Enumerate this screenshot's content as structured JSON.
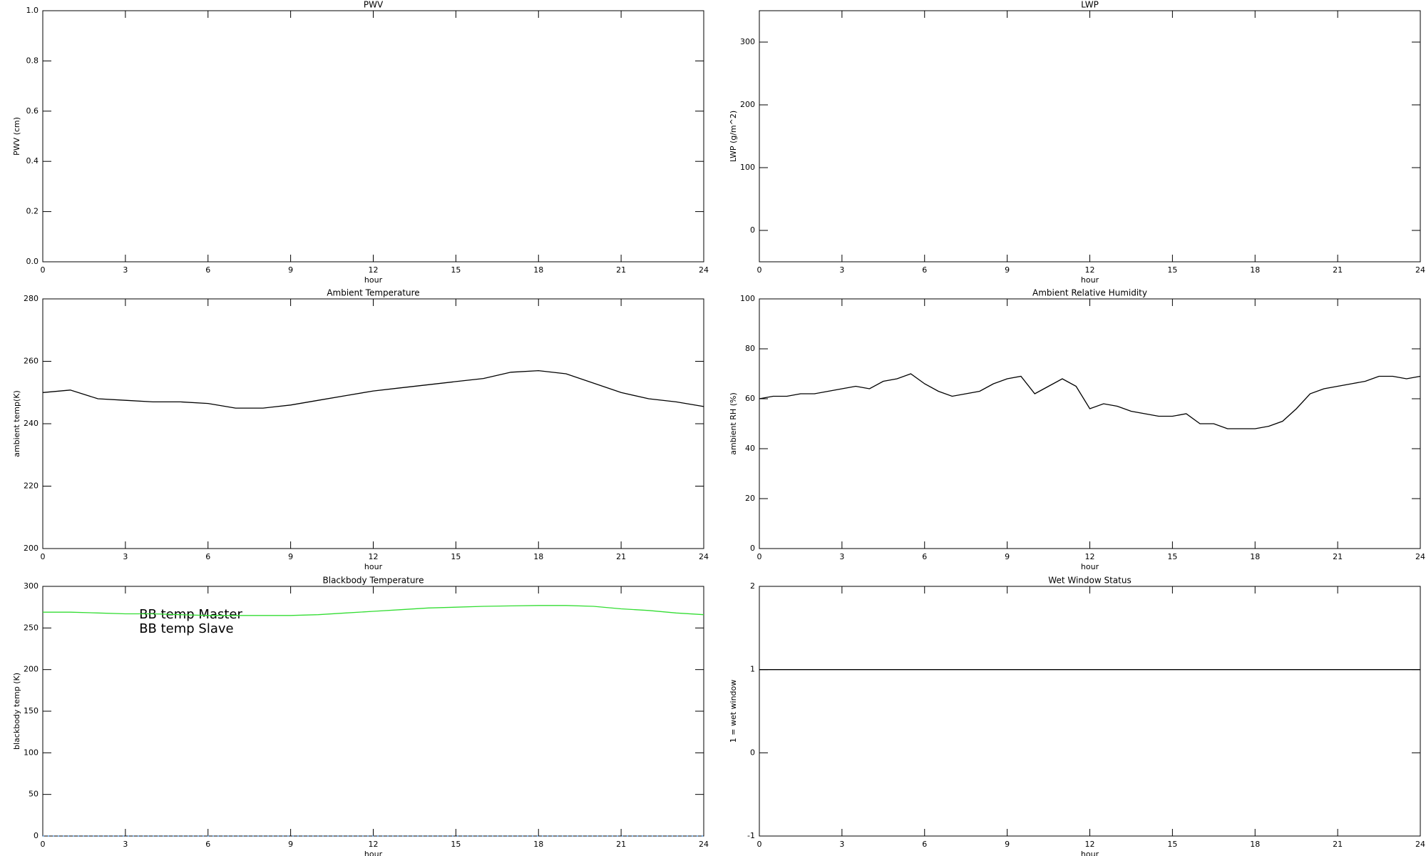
{
  "chart_data": [
    {
      "type": "line",
      "title": "PWV",
      "x_label": "hour",
      "y_label": "PWV (cm)",
      "xlim": [
        0,
        24
      ],
      "xticks": [
        0,
        3,
        6,
        9,
        12,
        15,
        18,
        21,
        24
      ],
      "ylim": [
        0,
        1
      ],
      "yticks": [
        {
          "value": 0,
          "label": "0.0"
        },
        0.2,
        0.4,
        0.6,
        0.8,
        {
          "value": 1,
          "label": "1.0"
        }
      ]
    },
    {
      "type": "line",
      "title": "LWP",
      "x_label": "hour",
      "y_label": "LWP (g/m^2)",
      "xlim": [
        0,
        24
      ],
      "xticks": [
        0,
        3,
        6,
        9,
        12,
        15,
        18,
        21,
        24
      ],
      "ylim": [
        -50,
        350
      ],
      "yticks": [
        0,
        100,
        200,
        300
      ]
    },
    {
      "type": "line",
      "title": "Ambient Temperature",
      "x_label": "hour",
      "y_label": "ambient temp(K)",
      "xlim": [
        0,
        24
      ],
      "xticks": [
        0,
        3,
        6,
        9,
        12,
        15,
        18,
        21,
        24
      ],
      "ylim": [
        200,
        280
      ],
      "yticks": [
        200,
        220,
        240,
        260,
        280
      ],
      "x": [
        0,
        1,
        2,
        3,
        4,
        5,
        6,
        7,
        8,
        9,
        10,
        11,
        12,
        13,
        14,
        15,
        16,
        17,
        18,
        19,
        20,
        21,
        22,
        23,
        24
      ],
      "series": [
        {
          "color": "#000000",
          "values": [
            250,
            250.8,
            248,
            247.5,
            247,
            247,
            246.5,
            245,
            245,
            246,
            247.5,
            249,
            250.5,
            251.5,
            252.5,
            253.5,
            254.5,
            256.5,
            257,
            256,
            253,
            250,
            248,
            247,
            245.5
          ]
        }
      ]
    },
    {
      "type": "line",
      "title": "Ambient Relative Humidity",
      "x_label": "hour",
      "y_label": "ambient RH (%)",
      "xlim": [
        0,
        24
      ],
      "xticks": [
        0,
        3,
        6,
        9,
        12,
        15,
        18,
        21,
        24
      ],
      "ylim": [
        0,
        100
      ],
      "yticks": [
        0,
        20,
        40,
        60,
        80,
        100
      ],
      "x": [
        0,
        0.5,
        1,
        1.5,
        2,
        2.5,
        3,
        3.5,
        4,
        4.5,
        5,
        5.5,
        6,
        6.5,
        7,
        7.5,
        8,
        8.5,
        9,
        9.5,
        10,
        10.5,
        11,
        11.5,
        12,
        12.5,
        13,
        13.5,
        14,
        14.5,
        15,
        15.5,
        16,
        16.5,
        17,
        17.5,
        18,
        18.5,
        19,
        19.5,
        20,
        20.5,
        21,
        21.5,
        22,
        22.5,
        23,
        23.5,
        24
      ],
      "series": [
        {
          "color": "#000000",
          "values": [
            60,
            61,
            61,
            62,
            62,
            63,
            64,
            65,
            64,
            67,
            68,
            70,
            66,
            63,
            61,
            62,
            63,
            66,
            68,
            69,
            62,
            65,
            68,
            65,
            56,
            58,
            57,
            55,
            54,
            53,
            53,
            54,
            50,
            50,
            48,
            48,
            48,
            49,
            51,
            56,
            62,
            64,
            65,
            66,
            67,
            69,
            69,
            68,
            69
          ]
        }
      ]
    },
    {
      "type": "line",
      "title": "Blackbody Temperature",
      "x_label": "hour",
      "y_label": "blackbody temp (K)",
      "xlim": [
        0,
        24
      ],
      "xticks": [
        0,
        3,
        6,
        9,
        12,
        15,
        18,
        21,
        24
      ],
      "ylim": [
        0,
        300
      ],
      "yticks": [
        0,
        50,
        100,
        150,
        200,
        250,
        300
      ],
      "x": [
        0,
        1,
        2,
        3,
        4,
        5,
        6,
        7,
        8,
        9,
        10,
        11,
        12,
        13,
        14,
        15,
        16,
        17,
        18,
        19,
        20,
        21,
        22,
        23,
        24
      ],
      "series": [
        {
          "name": "BB temp Master",
          "color": "#3a8ee6",
          "dotted": true,
          "values": [
            0,
            0,
            0,
            0,
            0,
            0,
            0,
            0,
            0,
            0,
            0,
            0,
            0,
            0,
            0,
            0,
            0,
            0,
            0,
            0,
            0,
            0,
            0,
            0,
            0
          ]
        },
        {
          "name": "BB temp Slave",
          "color": "#33dd33",
          "values": [
            269,
            269,
            268,
            267,
            267,
            266,
            265,
            265,
            265,
            265,
            266,
            268,
            270,
            272,
            274,
            275,
            276,
            276.5,
            277,
            277,
            276,
            273,
            271,
            268,
            266
          ]
        }
      ]
    },
    {
      "type": "line",
      "title": "Wet Window Status",
      "x_label": "hour",
      "y_label": "1 = wet window",
      "xlim": [
        0,
        24
      ],
      "xticks": [
        0,
        3,
        6,
        9,
        12,
        15,
        18,
        21,
        24
      ],
      "ylim": [
        -1,
        2
      ],
      "yticks": [
        -1,
        0,
        1,
        2
      ],
      "x": [
        0,
        24
      ],
      "series": [
        {
          "color": "#000000",
          "values": [
            1,
            1
          ]
        }
      ]
    }
  ]
}
